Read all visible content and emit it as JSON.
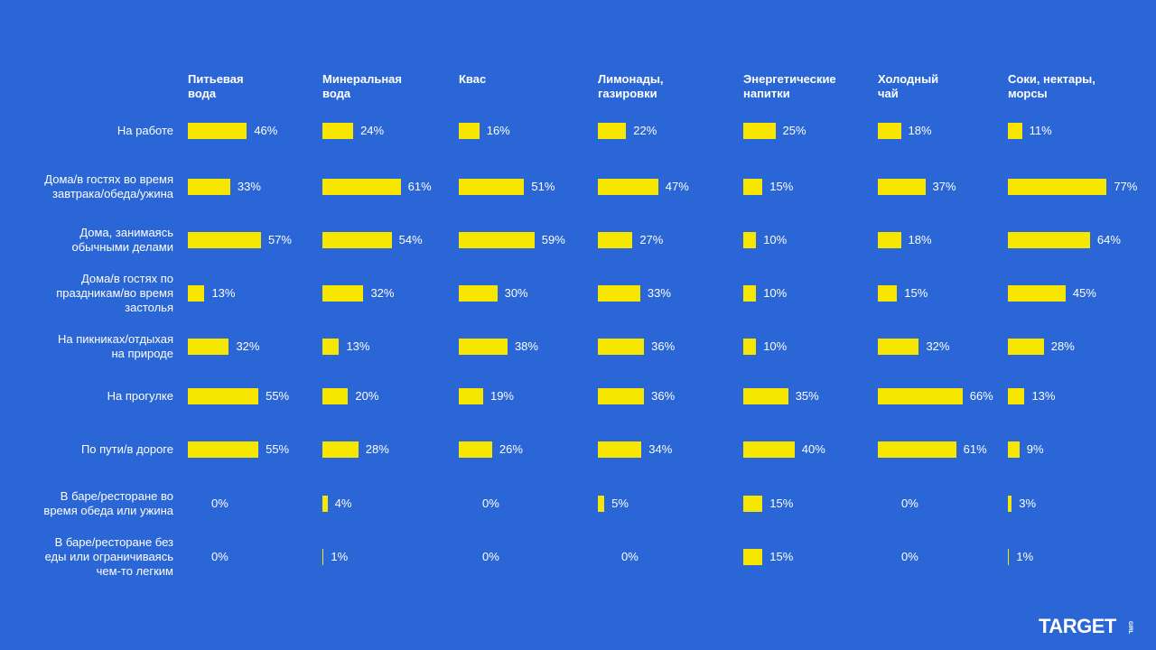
{
  "chart_data": {
    "type": "bar",
    "orientation": "horizontal",
    "layout": "small-multiples-grid",
    "columns": [
      "Питьевая\nвода",
      "Минеральная\nвода",
      "Квас",
      "Лимонады,\nгазировки",
      "Энергетические\nнапитки",
      "Холодный\nчай",
      "Соки, нектары,\nморсы"
    ],
    "rows": [
      "На работе",
      "Дома/в гостях во время\nзавтрака/обеда/ужина",
      "Дома, занимаясь\nобычными делами",
      "Дома/в гостях по\nпраздникам/во время\nзастолья",
      "На пикниках/отдыхая\nна природе",
      "На прогулке",
      "По пути/в дороге",
      "В баре/ресторане во\nвремя обеда или ужина",
      "В баре/ресторане без\nеды или ограничиваясь\nчем-то легким"
    ],
    "values": [
      [
        46,
        24,
        16,
        22,
        25,
        18,
        11
      ],
      [
        33,
        61,
        51,
        47,
        15,
        37,
        77
      ],
      [
        57,
        54,
        59,
        27,
        10,
        18,
        64
      ],
      [
        13,
        32,
        30,
        33,
        10,
        15,
        45
      ],
      [
        32,
        13,
        38,
        36,
        10,
        32,
        28
      ],
      [
        55,
        20,
        19,
        36,
        35,
        66,
        13
      ],
      [
        55,
        28,
        26,
        34,
        40,
        61,
        9
      ],
      [
        0,
        4,
        0,
        5,
        15,
        0,
        3
      ],
      [
        0,
        1,
        0,
        0,
        15,
        0,
        1
      ]
    ],
    "value_suffix": "%",
    "bar_color": "#f7e600",
    "background_color": "#2a66d6"
  },
  "brand": {
    "name": "TARGET",
    "sub": "GIRL"
  }
}
